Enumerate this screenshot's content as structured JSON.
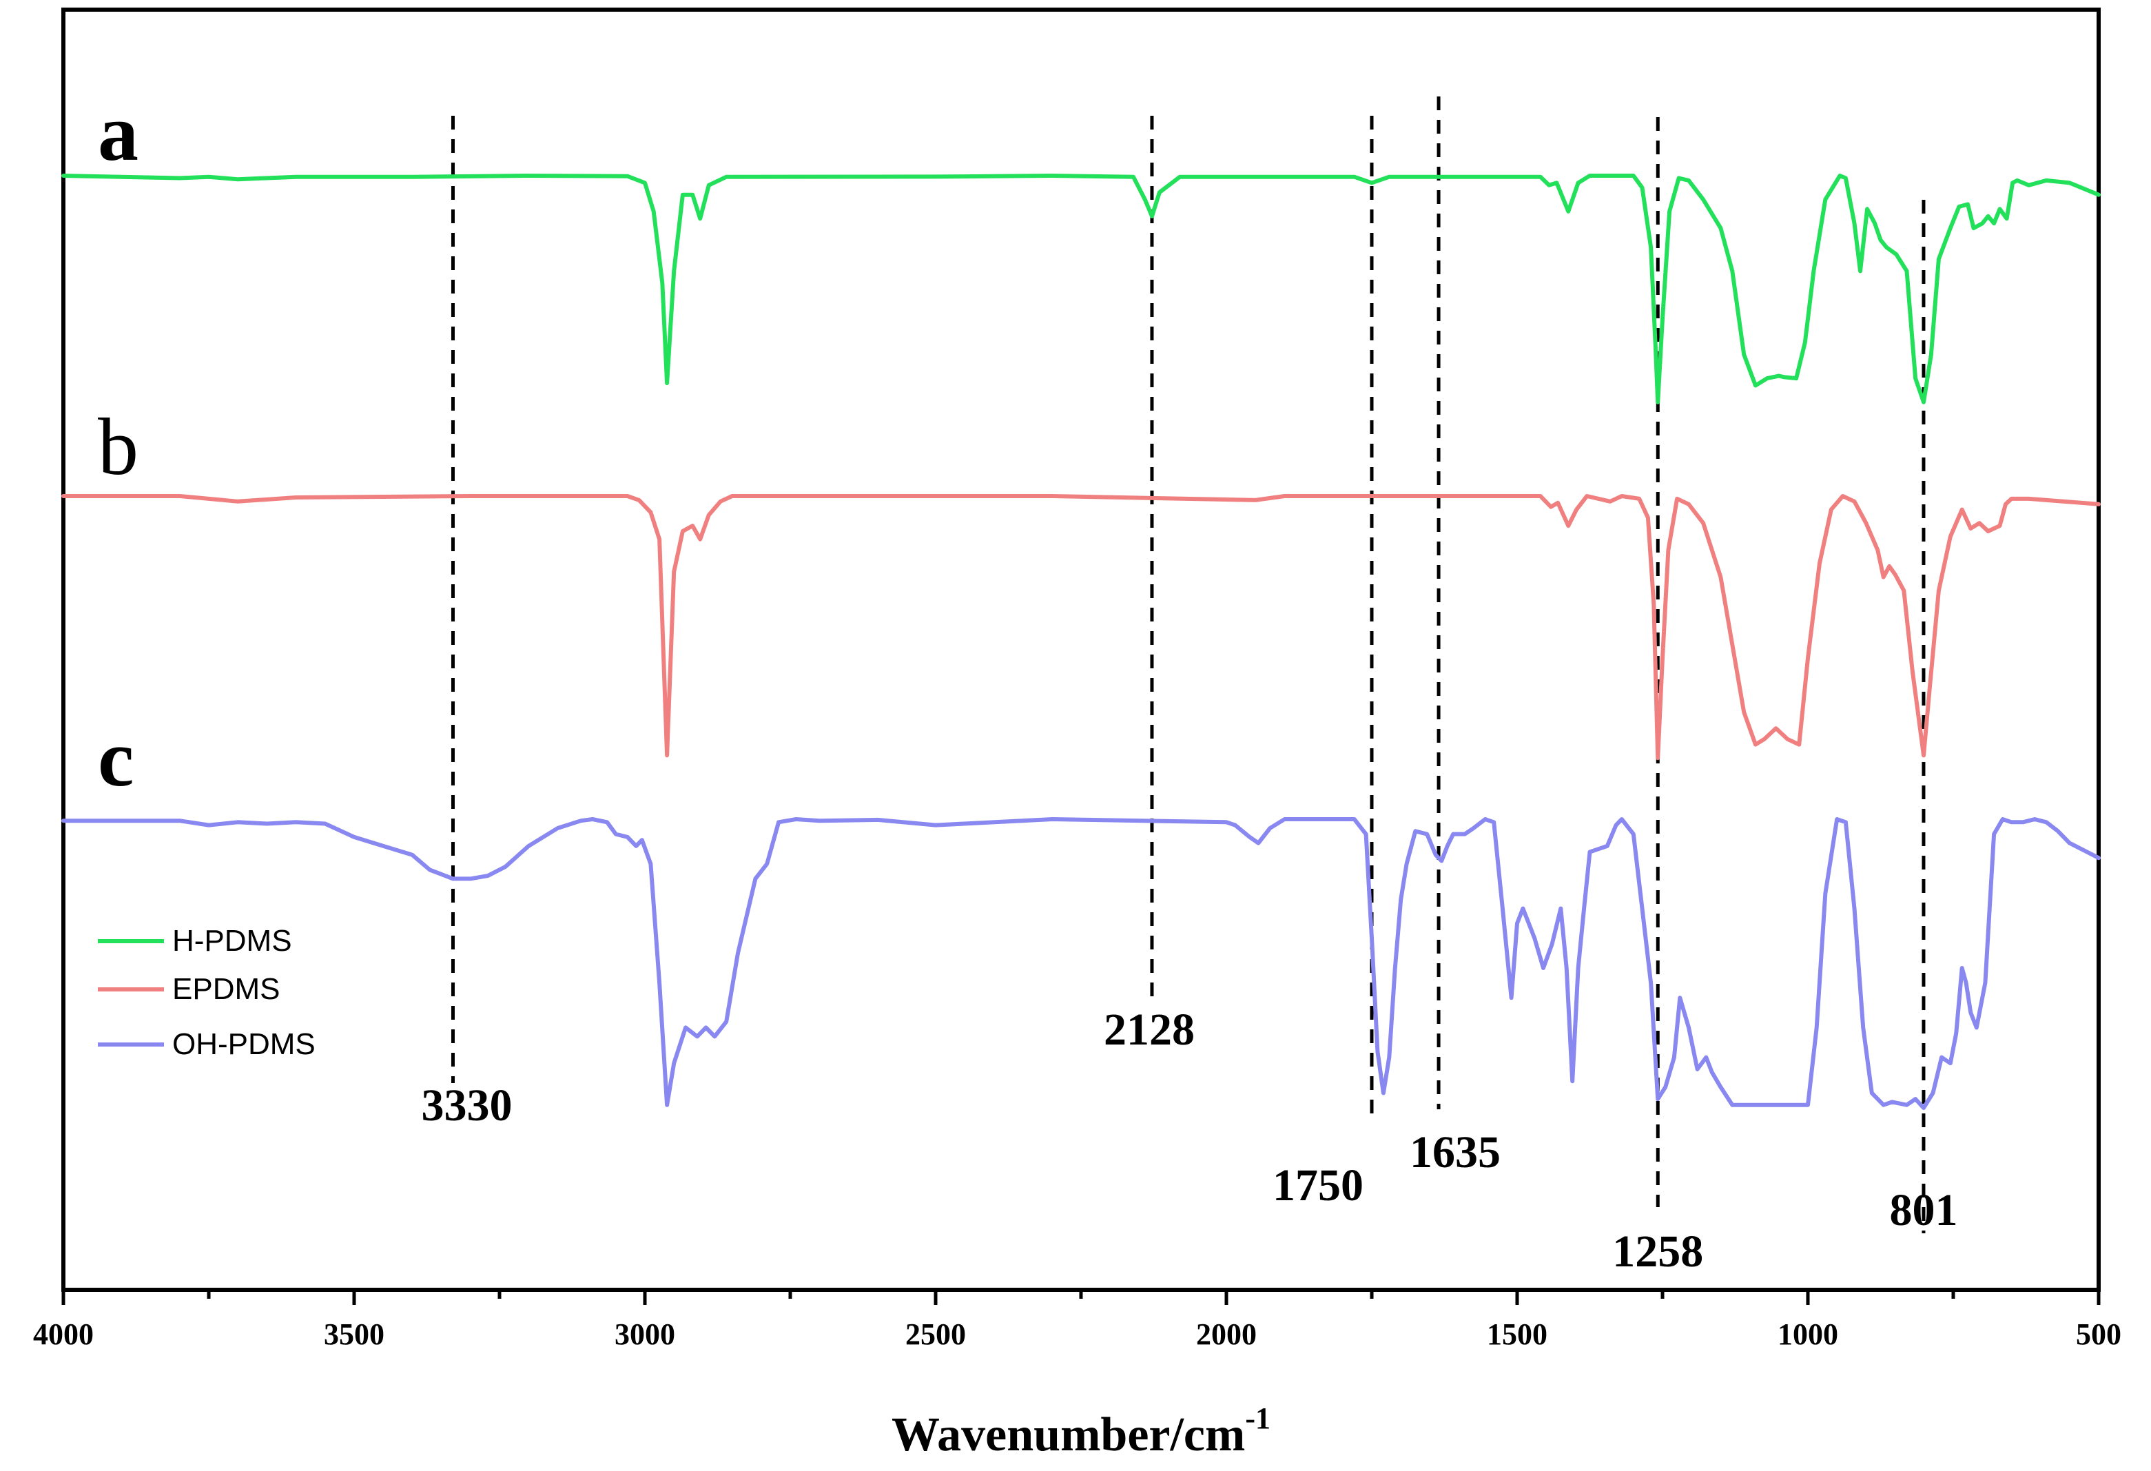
{
  "chart_data": {
    "type": "line",
    "title": "",
    "xlabel": "Wavenumber/cm",
    "xlabel_superscript": "-1",
    "ylabel": "",
    "xlim": [
      4000,
      500
    ],
    "x_reversed": true,
    "xticks": [
      4000,
      3500,
      3000,
      2500,
      2000,
      1500,
      1000,
      500
    ],
    "xtick_labels": [
      "4000",
      "3500",
      "3000",
      "2500",
      "2000",
      "1500",
      "1000",
      "500"
    ],
    "y_unit_note": "Transmittance in arbitrary units (0 = deepest absorption); values estimated, figure has no y-axis scale; each curve shown relative to its own panel baseline",
    "grid": false,
    "legend_position": "lower-left",
    "series": [
      {
        "panel": "a",
        "panel_bold": true,
        "name": "H-PDMS",
        "color": "#22e05a",
        "points": [
          [
            4000,
            100
          ],
          [
            3800,
            99
          ],
          [
            3750,
            99.5
          ],
          [
            3700,
            98.5
          ],
          [
            3600,
            99.5
          ],
          [
            3400,
            99.5
          ],
          [
            3200,
            100
          ],
          [
            3030,
            99.8
          ],
          [
            3000,
            97
          ],
          [
            2985,
            85
          ],
          [
            2970,
            55
          ],
          [
            2962,
            13
          ],
          [
            2950,
            60
          ],
          [
            2935,
            92
          ],
          [
            2918,
            92
          ],
          [
            2905,
            82
          ],
          [
            2890,
            96
          ],
          [
            2860,
            99.5
          ],
          [
            2500,
            99.6
          ],
          [
            2300,
            100
          ],
          [
            2160,
            99.5
          ],
          [
            2140,
            90
          ],
          [
            2128,
            83
          ],
          [
            2115,
            93
          ],
          [
            2080,
            99.5
          ],
          [
            1780,
            99.5
          ],
          [
            1750,
            97
          ],
          [
            1720,
            99.5
          ],
          [
            1460,
            99.5
          ],
          [
            1445,
            96
          ],
          [
            1432,
            97
          ],
          [
            1412,
            85
          ],
          [
            1395,
            97
          ],
          [
            1375,
            100
          ],
          [
            1300,
            100
          ],
          [
            1285,
            95
          ],
          [
            1270,
            70
          ],
          [
            1262,
            28
          ],
          [
            1258,
            5
          ],
          [
            1250,
            40
          ],
          [
            1238,
            85
          ],
          [
            1222,
            99
          ],
          [
            1205,
            98
          ],
          [
            1180,
            90
          ],
          [
            1150,
            78
          ],
          [
            1130,
            60
          ],
          [
            1110,
            25
          ],
          [
            1090,
            12
          ],
          [
            1070,
            15
          ],
          [
            1050,
            16
          ],
          [
            1040,
            15.5
          ],
          [
            1020,
            15
          ],
          [
            1005,
            30
          ],
          [
            990,
            60
          ],
          [
            970,
            90
          ],
          [
            945,
            100
          ],
          [
            935,
            99
          ],
          [
            920,
            80
          ],
          [
            910,
            60
          ],
          [
            898,
            86
          ],
          [
            885,
            80
          ],
          [
            875,
            73
          ],
          [
            865,
            70
          ],
          [
            848,
            67
          ],
          [
            830,
            60
          ],
          [
            815,
            15
          ],
          [
            801,
            5
          ],
          [
            788,
            25
          ],
          [
            775,
            65
          ],
          [
            755,
            78
          ],
          [
            740,
            87
          ],
          [
            725,
            88
          ],
          [
            715,
            78
          ],
          [
            700,
            80
          ],
          [
            690,
            83
          ],
          [
            680,
            80
          ],
          [
            670,
            86
          ],
          [
            658,
            82
          ],
          [
            648,
            97
          ],
          [
            640,
            98
          ],
          [
            620,
            96
          ],
          [
            590,
            98
          ],
          [
            550,
            97
          ],
          [
            500,
            92
          ]
        ]
      },
      {
        "panel": "b",
        "panel_bold": false,
        "name": "EPDMS",
        "color": "#f08080",
        "points": [
          [
            4000,
            100
          ],
          [
            3800,
            100
          ],
          [
            3750,
            99
          ],
          [
            3700,
            98
          ],
          [
            3600,
            99.5
          ],
          [
            3300,
            100
          ],
          [
            3030,
            100
          ],
          [
            3010,
            98.5
          ],
          [
            2990,
            94
          ],
          [
            2975,
            84
          ],
          [
            2962,
            4
          ],
          [
            2950,
            72
          ],
          [
            2935,
            87
          ],
          [
            2918,
            89
          ],
          [
            2905,
            84
          ],
          [
            2890,
            93
          ],
          [
            2870,
            98
          ],
          [
            2850,
            100
          ],
          [
            2500,
            100
          ],
          [
            2300,
            100
          ],
          [
            1950,
            98.5
          ],
          [
            1900,
            100
          ],
          [
            1460,
            100
          ],
          [
            1442,
            96
          ],
          [
            1430,
            97.5
          ],
          [
            1412,
            89
          ],
          [
            1398,
            95
          ],
          [
            1380,
            100
          ],
          [
            1340,
            98
          ],
          [
            1320,
            100
          ],
          [
            1290,
            99
          ],
          [
            1275,
            92
          ],
          [
            1265,
            60
          ],
          [
            1258,
            3
          ],
          [
            1250,
            40
          ],
          [
            1240,
            80
          ],
          [
            1225,
            99
          ],
          [
            1205,
            97
          ],
          [
            1180,
            90
          ],
          [
            1150,
            70
          ],
          [
            1130,
            45
          ],
          [
            1110,
            20
          ],
          [
            1090,
            8
          ],
          [
            1075,
            10
          ],
          [
            1055,
            14
          ],
          [
            1035,
            10
          ],
          [
            1015,
            8
          ],
          [
            1000,
            40
          ],
          [
            980,
            75
          ],
          [
            960,
            95
          ],
          [
            940,
            100
          ],
          [
            920,
            98
          ],
          [
            900,
            90
          ],
          [
            880,
            80
          ],
          [
            870,
            70
          ],
          [
            860,
            74
          ],
          [
            850,
            71
          ],
          [
            835,
            65
          ],
          [
            820,
            35
          ],
          [
            801,
            4
          ],
          [
            790,
            30
          ],
          [
            775,
            65
          ],
          [
            755,
            85
          ],
          [
            735,
            95
          ],
          [
            720,
            88
          ],
          [
            705,
            90
          ],
          [
            690,
            87
          ],
          [
            680,
            88
          ],
          [
            670,
            89
          ],
          [
            660,
            97
          ],
          [
            650,
            99
          ],
          [
            620,
            99
          ],
          [
            500,
            97
          ]
        ]
      },
      {
        "panel": "c",
        "panel_bold": true,
        "name": "OH-PDMS",
        "color": "#8888f0",
        "points": [
          [
            4000,
            99.5
          ],
          [
            3800,
            99.5
          ],
          [
            3750,
            98
          ],
          [
            3700,
            99
          ],
          [
            3650,
            98.5
          ],
          [
            3600,
            99
          ],
          [
            3550,
            98.5
          ],
          [
            3500,
            94
          ],
          [
            3450,
            91
          ],
          [
            3400,
            88
          ],
          [
            3370,
            83
          ],
          [
            3330,
            80
          ],
          [
            3300,
            80
          ],
          [
            3270,
            81
          ],
          [
            3240,
            84
          ],
          [
            3200,
            91
          ],
          [
            3150,
            97
          ],
          [
            3110,
            99.5
          ],
          [
            3090,
            100
          ],
          [
            3065,
            99
          ],
          [
            3050,
            95
          ],
          [
            3030,
            94
          ],
          [
            3015,
            91
          ],
          [
            3005,
            93
          ],
          [
            2990,
            85
          ],
          [
            2975,
            45
          ],
          [
            2962,
            4
          ],
          [
            2950,
            18
          ],
          [
            2930,
            30
          ],
          [
            2910,
            27
          ],
          [
            2895,
            30
          ],
          [
            2880,
            27
          ],
          [
            2860,
            32
          ],
          [
            2840,
            55
          ],
          [
            2810,
            80
          ],
          [
            2790,
            85
          ],
          [
            2770,
            99
          ],
          [
            2740,
            100
          ],
          [
            2700,
            99.5
          ],
          [
            2600,
            99.8
          ],
          [
            2500,
            98
          ],
          [
            2300,
            100
          ],
          [
            2000,
            99
          ],
          [
            1985,
            98
          ],
          [
            1960,
            94
          ],
          [
            1945,
            92
          ],
          [
            1925,
            97
          ],
          [
            1900,
            100
          ],
          [
            1780,
            100
          ],
          [
            1760,
            95
          ],
          [
            1750,
            60
          ],
          [
            1740,
            22
          ],
          [
            1730,
            8
          ],
          [
            1720,
            20
          ],
          [
            1710,
            50
          ],
          [
            1700,
            73
          ],
          [
            1690,
            85
          ],
          [
            1675,
            96
          ],
          [
            1655,
            95
          ],
          [
            1640,
            88
          ],
          [
            1630,
            86
          ],
          [
            1620,
            91
          ],
          [
            1610,
            95
          ],
          [
            1590,
            95
          ],
          [
            1575,
            97
          ],
          [
            1555,
            100
          ],
          [
            1540,
            99
          ],
          [
            1525,
            70
          ],
          [
            1510,
            40
          ],
          [
            1500,
            65
          ],
          [
            1490,
            70
          ],
          [
            1480,
            65
          ],
          [
            1470,
            60
          ],
          [
            1455,
            50
          ],
          [
            1440,
            58
          ],
          [
            1425,
            70
          ],
          [
            1415,
            50
          ],
          [
            1405,
            12
          ],
          [
            1395,
            50
          ],
          [
            1385,
            70
          ],
          [
            1375,
            89
          ],
          [
            1360,
            90
          ],
          [
            1345,
            91
          ],
          [
            1330,
            98
          ],
          [
            1320,
            100
          ],
          [
            1300,
            95
          ],
          [
            1285,
            70
          ],
          [
            1270,
            45
          ],
          [
            1258,
            6
          ],
          [
            1245,
            10
          ],
          [
            1230,
            20
          ],
          [
            1220,
            40
          ],
          [
            1205,
            30
          ],
          [
            1190,
            16
          ],
          [
            1175,
            20
          ],
          [
            1165,
            15
          ],
          [
            1150,
            10
          ],
          [
            1130,
            4
          ],
          [
            1000,
            4
          ],
          [
            985,
            30
          ],
          [
            970,
            75
          ],
          [
            950,
            100
          ],
          [
            935,
            99
          ],
          [
            920,
            70
          ],
          [
            905,
            30
          ],
          [
            890,
            8
          ],
          [
            870,
            4
          ],
          [
            855,
            5
          ],
          [
            830,
            4
          ],
          [
            815,
            6
          ],
          [
            801,
            3
          ],
          [
            785,
            8
          ],
          [
            770,
            20
          ],
          [
            755,
            18
          ],
          [
            745,
            28
          ],
          [
            735,
            50
          ],
          [
            728,
            45
          ],
          [
            720,
            35
          ],
          [
            710,
            30
          ],
          [
            695,
            45
          ],
          [
            680,
            95
          ],
          [
            665,
            100
          ],
          [
            650,
            99
          ],
          [
            630,
            99
          ],
          [
            610,
            100
          ],
          [
            590,
            99
          ],
          [
            570,
            96
          ],
          [
            550,
            92
          ],
          [
            530,
            90
          ],
          [
            510,
            88
          ],
          [
            500,
            87
          ]
        ]
      }
    ],
    "annotations": [
      {
        "wavenumber": 3330,
        "label": "3330"
      },
      {
        "wavenumber": 2128,
        "label": "2128"
      },
      {
        "wavenumber": 1750,
        "label": "1750"
      },
      {
        "wavenumber": 1635,
        "label": "1635"
      },
      {
        "wavenumber": 1258,
        "label": "1258"
      },
      {
        "wavenumber": 801,
        "label": "801"
      }
    ]
  }
}
